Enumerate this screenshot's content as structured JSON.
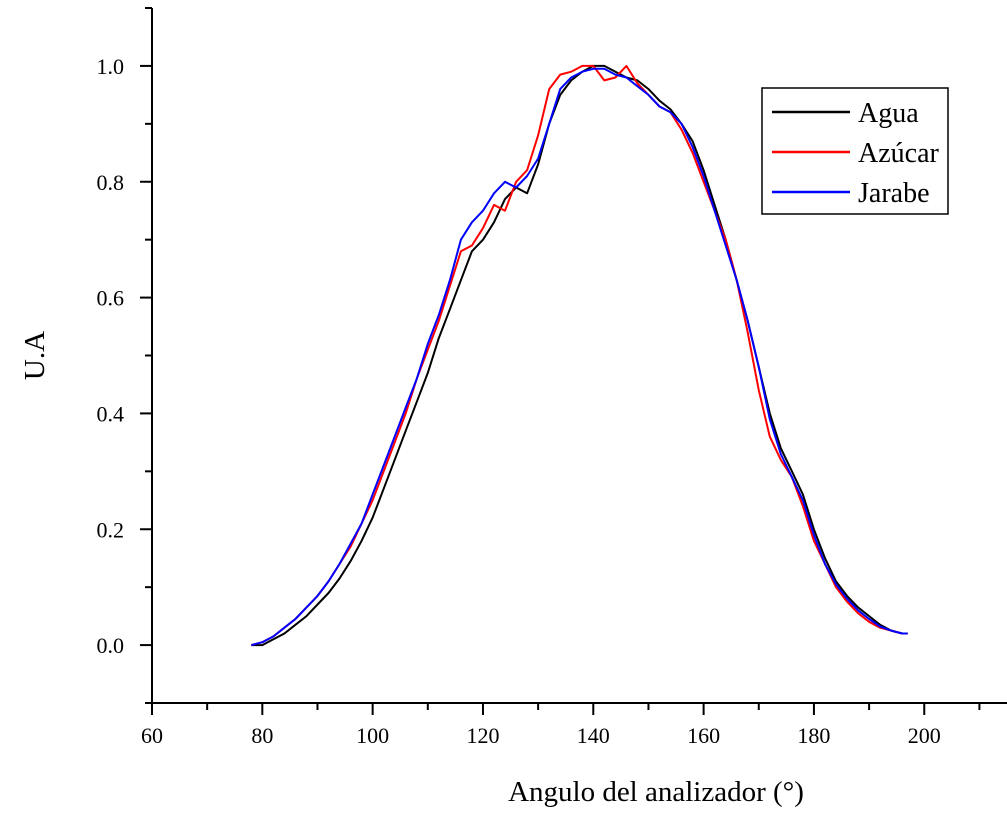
{
  "chart_data": {
    "type": "line",
    "xlabel": "Angulo del analizador (°)",
    "ylabel": "U.A",
    "xlim": [
      60,
      215
    ],
    "ylim": [
      -0.1,
      1.1
    ],
    "x_ticks": [
      "60",
      "80",
      "100",
      "120",
      "140",
      "160",
      "180",
      "200"
    ],
    "y_ticks": [
      "0.0",
      "0.2",
      "0.4",
      "0.6",
      "0.8",
      "1.0"
    ],
    "legend_position": "top-right",
    "series": [
      {
        "name": "Agua",
        "color": "#000000",
        "x": [
          78,
          80,
          82,
          84,
          86,
          88,
          90,
          92,
          94,
          96,
          98,
          100,
          102,
          104,
          106,
          108,
          110,
          112,
          114,
          116,
          118,
          120,
          122,
          124,
          126,
          128,
          130,
          132,
          134,
          136,
          138,
          140,
          142,
          144,
          146,
          148,
          150,
          152,
          154,
          156,
          158,
          160,
          162,
          164,
          166,
          168,
          170,
          172,
          174,
          176,
          178,
          180,
          182,
          184,
          186,
          188,
          190,
          192,
          194,
          196,
          197
        ],
        "values": [
          0.0,
          0.0,
          0.01,
          0.02,
          0.035,
          0.05,
          0.07,
          0.09,
          0.115,
          0.145,
          0.18,
          0.22,
          0.27,
          0.32,
          0.37,
          0.42,
          0.47,
          0.53,
          0.58,
          0.63,
          0.68,
          0.7,
          0.73,
          0.77,
          0.79,
          0.78,
          0.83,
          0.9,
          0.95,
          0.975,
          0.99,
          1.0,
          1.0,
          0.99,
          0.98,
          0.975,
          0.96,
          0.94,
          0.925,
          0.9,
          0.87,
          0.82,
          0.76,
          0.7,
          0.63,
          0.56,
          0.48,
          0.4,
          0.34,
          0.3,
          0.26,
          0.2,
          0.15,
          0.11,
          0.085,
          0.065,
          0.05,
          0.035,
          0.025,
          0.02,
          0.02
        ]
      },
      {
        "name": "Azúcar",
        "color": "#ff0000",
        "x": [
          78,
          80,
          82,
          84,
          86,
          88,
          90,
          92,
          94,
          96,
          98,
          100,
          102,
          104,
          106,
          108,
          110,
          112,
          114,
          116,
          118,
          120,
          122,
          124,
          126,
          128,
          130,
          132,
          134,
          136,
          138,
          140,
          142,
          144,
          146,
          148,
          150,
          152,
          154,
          156,
          158,
          160,
          162,
          164,
          166,
          168,
          170,
          172,
          174,
          176,
          178,
          180,
          182,
          184,
          186,
          188,
          190,
          192,
          194,
          196,
          197
        ],
        "values": [
          0.0,
          0.005,
          0.015,
          0.03,
          0.045,
          0.065,
          0.085,
          0.11,
          0.14,
          0.17,
          0.21,
          0.25,
          0.3,
          0.35,
          0.4,
          0.46,
          0.51,
          0.56,
          0.62,
          0.68,
          0.69,
          0.72,
          0.76,
          0.75,
          0.8,
          0.82,
          0.88,
          0.96,
          0.985,
          0.99,
          1.0,
          1.0,
          0.975,
          0.98,
          1.0,
          0.97,
          0.95,
          0.93,
          0.92,
          0.89,
          0.85,
          0.8,
          0.75,
          0.7,
          0.63,
          0.54,
          0.44,
          0.36,
          0.32,
          0.29,
          0.24,
          0.18,
          0.14,
          0.1,
          0.075,
          0.055,
          0.04,
          0.03,
          0.025,
          0.02,
          0.02
        ]
      },
      {
        "name": "Jarabe",
        "color": "#0000ff",
        "x": [
          78,
          80,
          82,
          84,
          86,
          88,
          90,
          92,
          94,
          96,
          98,
          100,
          102,
          104,
          106,
          108,
          110,
          112,
          114,
          116,
          118,
          120,
          122,
          124,
          126,
          128,
          130,
          132,
          134,
          136,
          138,
          140,
          142,
          144,
          146,
          148,
          150,
          152,
          154,
          156,
          158,
          160,
          162,
          164,
          166,
          168,
          170,
          172,
          174,
          176,
          178,
          180,
          182,
          184,
          186,
          188,
          190,
          192,
          194,
          196,
          197
        ],
        "values": [
          0.0,
          0.005,
          0.015,
          0.03,
          0.045,
          0.065,
          0.085,
          0.11,
          0.14,
          0.175,
          0.21,
          0.26,
          0.31,
          0.36,
          0.41,
          0.46,
          0.52,
          0.57,
          0.63,
          0.7,
          0.73,
          0.75,
          0.78,
          0.8,
          0.79,
          0.81,
          0.84,
          0.9,
          0.96,
          0.98,
          0.99,
          0.995,
          0.995,
          0.985,
          0.98,
          0.965,
          0.95,
          0.93,
          0.92,
          0.9,
          0.86,
          0.81,
          0.75,
          0.69,
          0.63,
          0.56,
          0.48,
          0.39,
          0.33,
          0.29,
          0.25,
          0.19,
          0.14,
          0.105,
          0.08,
          0.06,
          0.045,
          0.032,
          0.025,
          0.02,
          0.02
        ]
      }
    ]
  }
}
